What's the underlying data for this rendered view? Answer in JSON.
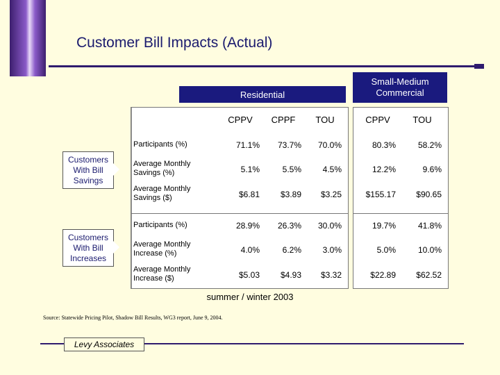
{
  "title": "Customer Bill Impacts (Actual)",
  "headers": {
    "residential": "Residential",
    "commercial_line1": "Small-Medium",
    "commercial_line2": "Commercial"
  },
  "columns": [
    "CPPV",
    "CPPF",
    "TOU",
    "CPPV",
    "TOU"
  ],
  "groups": {
    "savings": "Customers With Bill Savings",
    "increases": "Customers With Bill Increases"
  },
  "rows": [
    {
      "label_1": "Participants (%)",
      "label_2": "",
      "values": [
        "71.1%",
        "73.7%",
        "70.0%",
        "80.3%",
        "58.2%"
      ]
    },
    {
      "label_1": "Average Monthly",
      "label_2": "Savings (%)",
      "values": [
        "5.1%",
        "5.5%",
        "4.5%",
        "12.2%",
        "9.6%"
      ]
    },
    {
      "label_1": "Average Monthly",
      "label_2": "Savings ($)",
      "values": [
        "$6.81",
        "$3.89",
        "$3.25",
        "$155.17",
        "$90.65"
      ]
    },
    {
      "label_1": "Participants (%)",
      "label_2": "",
      "values": [
        "28.9%",
        "26.3%",
        "30.0%",
        "19.7%",
        "41.8%"
      ]
    },
    {
      "label_1": "Average Monthly",
      "label_2": "Increase (%)",
      "values": [
        "4.0%",
        "6.2%",
        "3.0%",
        "5.0%",
        "10.0%"
      ]
    },
    {
      "label_1": "Average Monthly",
      "label_2": "Increase ($)",
      "values": [
        "$5.03",
        "$4.93",
        "$3.32",
        "$22.89",
        "$62.52"
      ]
    }
  ],
  "note": "summer / winter 2003",
  "source": "Source: Statewide Pricing Pilot, Shadow Bill Results, WG3 report, June 9, 2004.",
  "logo": "Levy Associates"
}
